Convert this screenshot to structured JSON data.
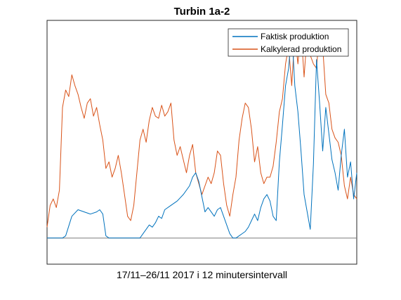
{
  "chart_data": {
    "type": "line",
    "title": "Turbin 1a-2",
    "xlabel": "17/11–26/11 2017 i 12 minutersintervall",
    "ylabel": "",
    "legend_position": "top-right",
    "grid": false,
    "x_range": [
      0,
      100
    ],
    "y_range": [
      -12,
      100
    ],
    "baseline": 0,
    "series": [
      {
        "name": "Faktisk produktion",
        "color": "#0072BD",
        "x": [
          0,
          3,
          4,
          5,
          6,
          8,
          10,
          12,
          14,
          16,
          17,
          18,
          19,
          20,
          25,
          30,
          31,
          32,
          33,
          34,
          35,
          36,
          37,
          38,
          40,
          42,
          44,
          46,
          47,
          48,
          49,
          50,
          51,
          52,
          53,
          54,
          55,
          56,
          57,
          58,
          59,
          60,
          61,
          62,
          63,
          64,
          65,
          66,
          67,
          68,
          69,
          70,
          71,
          72,
          73,
          74,
          75,
          76,
          77,
          78,
          79,
          80,
          81,
          82,
          83,
          84,
          85,
          86,
          87,
          88,
          89,
          90,
          91,
          92,
          93,
          94,
          95,
          96,
          97,
          98,
          99,
          100
        ],
        "y": [
          0,
          0,
          0,
          0,
          1,
          10,
          13,
          12,
          11,
          12,
          13,
          11,
          1,
          0,
          0,
          0,
          2,
          4,
          6,
          5,
          7,
          10,
          9,
          13,
          15,
          17,
          20,
          24,
          28,
          30,
          26,
          19,
          12,
          14,
          12,
          10,
          13,
          14,
          10,
          6,
          2,
          0,
          0,
          1,
          2,
          3,
          5,
          8,
          11,
          8,
          14,
          18,
          20,
          17,
          10,
          8,
          35,
          52,
          70,
          78,
          96,
          70,
          58,
          40,
          20,
          12,
          4,
          34,
          82,
          62,
          40,
          60,
          48,
          36,
          30,
          22,
          38,
          50,
          28,
          35,
          18,
          30
        ]
      },
      {
        "name": "Kalkylerad produktion",
        "color": "#D95319",
        "x": [
          0,
          1,
          2,
          3,
          4,
          5,
          6,
          7,
          8,
          9,
          10,
          11,
          12,
          13,
          14,
          15,
          16,
          17,
          18,
          19,
          20,
          21,
          22,
          23,
          24,
          25,
          26,
          27,
          28,
          29,
          30,
          31,
          32,
          33,
          34,
          35,
          36,
          37,
          38,
          39,
          40,
          41,
          42,
          43,
          44,
          45,
          46,
          47,
          48,
          49,
          50,
          51,
          52,
          53,
          54,
          55,
          56,
          57,
          58,
          59,
          60,
          61,
          62,
          63,
          64,
          65,
          66,
          67,
          68,
          69,
          70,
          71,
          72,
          73,
          74,
          75,
          76,
          77,
          78,
          79,
          80,
          81,
          82,
          83,
          84,
          85,
          86,
          87,
          88,
          89,
          90,
          91,
          92,
          93,
          94,
          95,
          96,
          97,
          98,
          99,
          100
        ],
        "y": [
          5,
          15,
          18,
          14,
          22,
          60,
          68,
          65,
          75,
          70,
          66,
          60,
          55,
          62,
          64,
          56,
          60,
          52,
          45,
          32,
          35,
          28,
          32,
          38,
          30,
          20,
          10,
          8,
          15,
          30,
          45,
          50,
          44,
          54,
          60,
          56,
          55,
          61,
          56,
          58,
          62,
          45,
          38,
          42,
          36,
          30,
          38,
          43,
          30,
          25,
          20,
          24,
          28,
          25,
          30,
          40,
          38,
          25,
          15,
          10,
          20,
          28,
          45,
          55,
          62,
          60,
          50,
          35,
          42,
          30,
          25,
          28,
          28,
          33,
          44,
          58,
          64,
          80,
          88,
          70,
          94,
          80,
          96,
          74,
          94,
          84,
          80,
          78,
          96,
          88,
          66,
          62,
          50,
          46,
          44,
          38,
          24,
          18,
          28,
          20,
          18
        ]
      }
    ]
  }
}
